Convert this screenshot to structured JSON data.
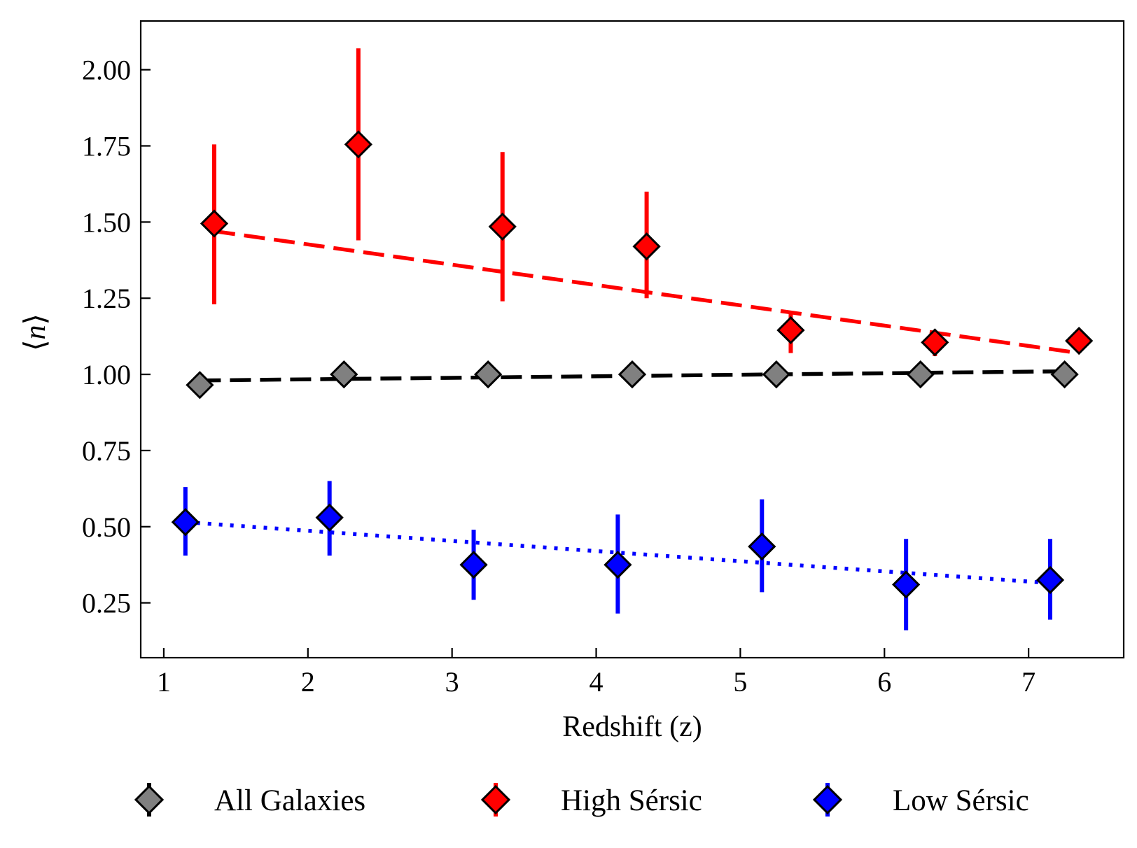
{
  "chart_data": {
    "type": "scatter",
    "title": "",
    "xlabel": "Redshift (z)",
    "ylabel_prefix": "⟨",
    "ylabel_var": "n",
    "ylabel_suffix": "⟩",
    "xlim": [
      0.84,
      7.66
    ],
    "ylim": [
      0.07,
      2.16
    ],
    "xticks": [
      1,
      2,
      3,
      4,
      5,
      6,
      7
    ],
    "xtick_labels": [
      "1",
      "2",
      "3",
      "4",
      "5",
      "6",
      "7"
    ],
    "yticks": [
      0.25,
      0.5,
      0.75,
      1.0,
      1.25,
      1.5,
      1.75,
      2.0
    ],
    "ytick_labels": [
      "0.25",
      "0.50",
      "0.75",
      "1.00",
      "1.25",
      "1.50",
      "1.75",
      "2.00"
    ],
    "legend_position": "bottom-center-outside",
    "series": [
      {
        "name": "All Galaxies",
        "color": "#808080",
        "line_color": "#000000",
        "line_style": "dashed",
        "x": [
          1.25,
          2.25,
          3.25,
          4.25,
          5.25,
          6.25,
          7.25
        ],
        "y": [
          0.965,
          1.0,
          1.0,
          1.0,
          1.0,
          1.0,
          1.0
        ],
        "yerr_low": [
          0,
          0,
          0,
          0,
          0,
          0,
          0
        ],
        "yerr_high": [
          0,
          0,
          0,
          0,
          0,
          0,
          0
        ],
        "fit_x": [
          1.25,
          7.25
        ],
        "fit_y": [
          0.98,
          1.01
        ]
      },
      {
        "name": "High Sérsic",
        "color": "#ff0000",
        "line_color": "#ff0000",
        "line_style": "dashed",
        "x": [
          1.35,
          2.35,
          3.35,
          4.35,
          5.35,
          6.35,
          7.35
        ],
        "y": [
          1.495,
          1.755,
          1.485,
          1.42,
          1.145,
          1.105,
          1.11
        ],
        "yerr_low": [
          1.23,
          1.44,
          1.24,
          1.25,
          1.07,
          1.06,
          1.08
        ],
        "yerr_high": [
          1.755,
          2.07,
          1.73,
          1.6,
          1.2,
          1.14,
          1.15
        ],
        "fit_x": [
          1.35,
          7.35
        ],
        "fit_y": [
          1.47,
          1.07
        ]
      },
      {
        "name": "Low Sérsic",
        "color": "#0000ff",
        "line_color": "#0000ff",
        "line_style": "dotted",
        "x": [
          1.15,
          2.15,
          3.15,
          4.15,
          5.15,
          6.15,
          7.15
        ],
        "y": [
          0.515,
          0.53,
          0.375,
          0.375,
          0.435,
          0.31,
          0.325
        ],
        "yerr_low": [
          0.405,
          0.405,
          0.26,
          0.215,
          0.285,
          0.16,
          0.195
        ],
        "yerr_high": [
          0.63,
          0.65,
          0.49,
          0.54,
          0.59,
          0.46,
          0.46
        ],
        "fit_x": [
          1.15,
          7.15
        ],
        "fit_y": [
          0.515,
          0.315
        ]
      }
    ]
  }
}
